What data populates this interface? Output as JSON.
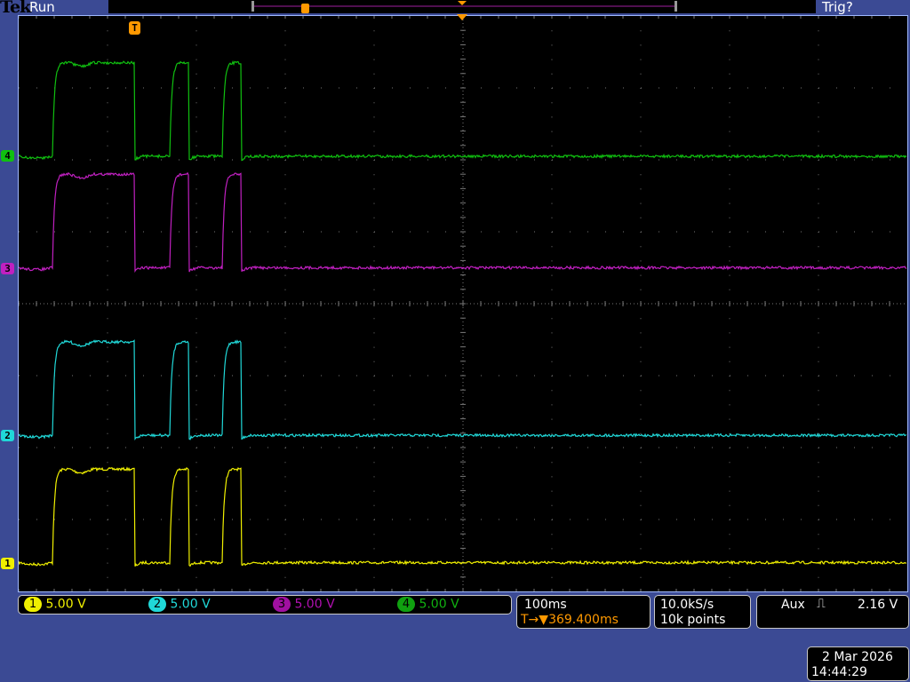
{
  "header": {
    "brand": "Tek",
    "acq_state": "Run",
    "trigger_status": "Trig?",
    "trigger_marker": "T"
  },
  "channels": [
    {
      "id": "1",
      "scale": "5.00 V",
      "color": "#f0f000"
    },
    {
      "id": "2",
      "scale": "5.00 V",
      "color": "#20d8d8"
    },
    {
      "id": "3",
      "scale": "5.00 V",
      "color": "#c020c0"
    },
    {
      "id": "4",
      "scale": "5.00 V",
      "color": "#10c010"
    }
  ],
  "horizontal": {
    "scale": "100ms",
    "delay_icon": "T→▼",
    "delay": "369.400ms"
  },
  "acquisition": {
    "sample_rate": "10.0kS/s",
    "record_length": "10k points"
  },
  "trigger": {
    "source": "Aux",
    "slope_icon": "rising-edge-icon",
    "slope_glyph": "⎍",
    "level": "2.16 V"
  },
  "datetime": {
    "date": "2 Mar 2026",
    "time": "14:44:29"
  },
  "chart_data": {
    "type": "line",
    "x_unit": "ms",
    "x_divisions": 10,
    "y_divisions": 8,
    "grid": true,
    "pulses_ms": [
      [
        38,
        131
      ],
      [
        170,
        192
      ],
      [
        229,
        251
      ]
    ],
    "high_level_v": 6.5,
    "series": [
      {
        "name": "1",
        "color": "#f0f000"
      },
      {
        "name": "2",
        "color": "#20d8d8"
      },
      {
        "name": "3",
        "color": "#c020c0"
      },
      {
        "name": "4",
        "color": "#10c010"
      }
    ]
  }
}
